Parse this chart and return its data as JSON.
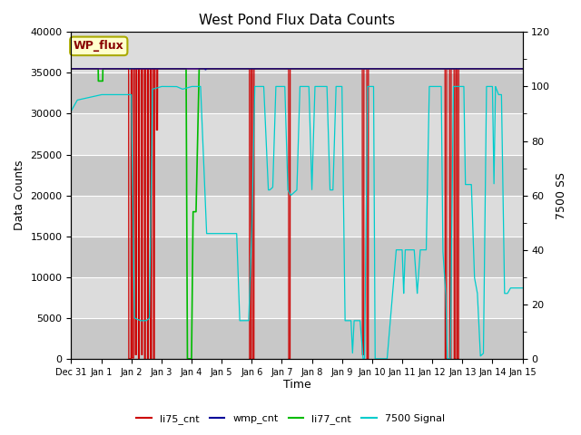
{
  "title": "West Pond Flux Data Counts",
  "ylabel_left": "Data Counts",
  "ylabel_right": "7500 SS",
  "xlabel": "Time",
  "ylim_left": [
    0,
    40000
  ],
  "ylim_right": [
    0,
    120
  ],
  "yticks_left": [
    0,
    5000,
    10000,
    15000,
    20000,
    25000,
    30000,
    35000,
    40000
  ],
  "yticks_right": [
    0,
    20,
    40,
    60,
    80,
    100,
    120
  ],
  "bg_light": "#dcdcdc",
  "bg_dark": "#c8c8c8",
  "grid_color": "#ffffff",
  "annotation_box_text": "WP_flux",
  "annotation_box_color": "#ffffcc",
  "annotation_box_edge": "#aaaa00",
  "annotation_text_color": "#880000",
  "li75_color": "#cc0000",
  "wmp_color": "#000099",
  "li77_color": "#00bb00",
  "signal7500_color": "#00cccc",
  "legend_entries": [
    "li75_cnt",
    "wmp_cnt",
    "li77_cnt",
    "7500 Signal"
  ],
  "xtick_labels": [
    "Dec 31",
    "Jan 1",
    "Jan 2",
    "Jan 3",
    "Jan 4",
    "Jan 5",
    "Jan 6",
    "Jan 7",
    "Jan 8",
    "Jan 9",
    "Jan 10",
    "Jan 11",
    "Jan 12",
    "Jan 13",
    "Jan 14",
    "Jan 15"
  ]
}
